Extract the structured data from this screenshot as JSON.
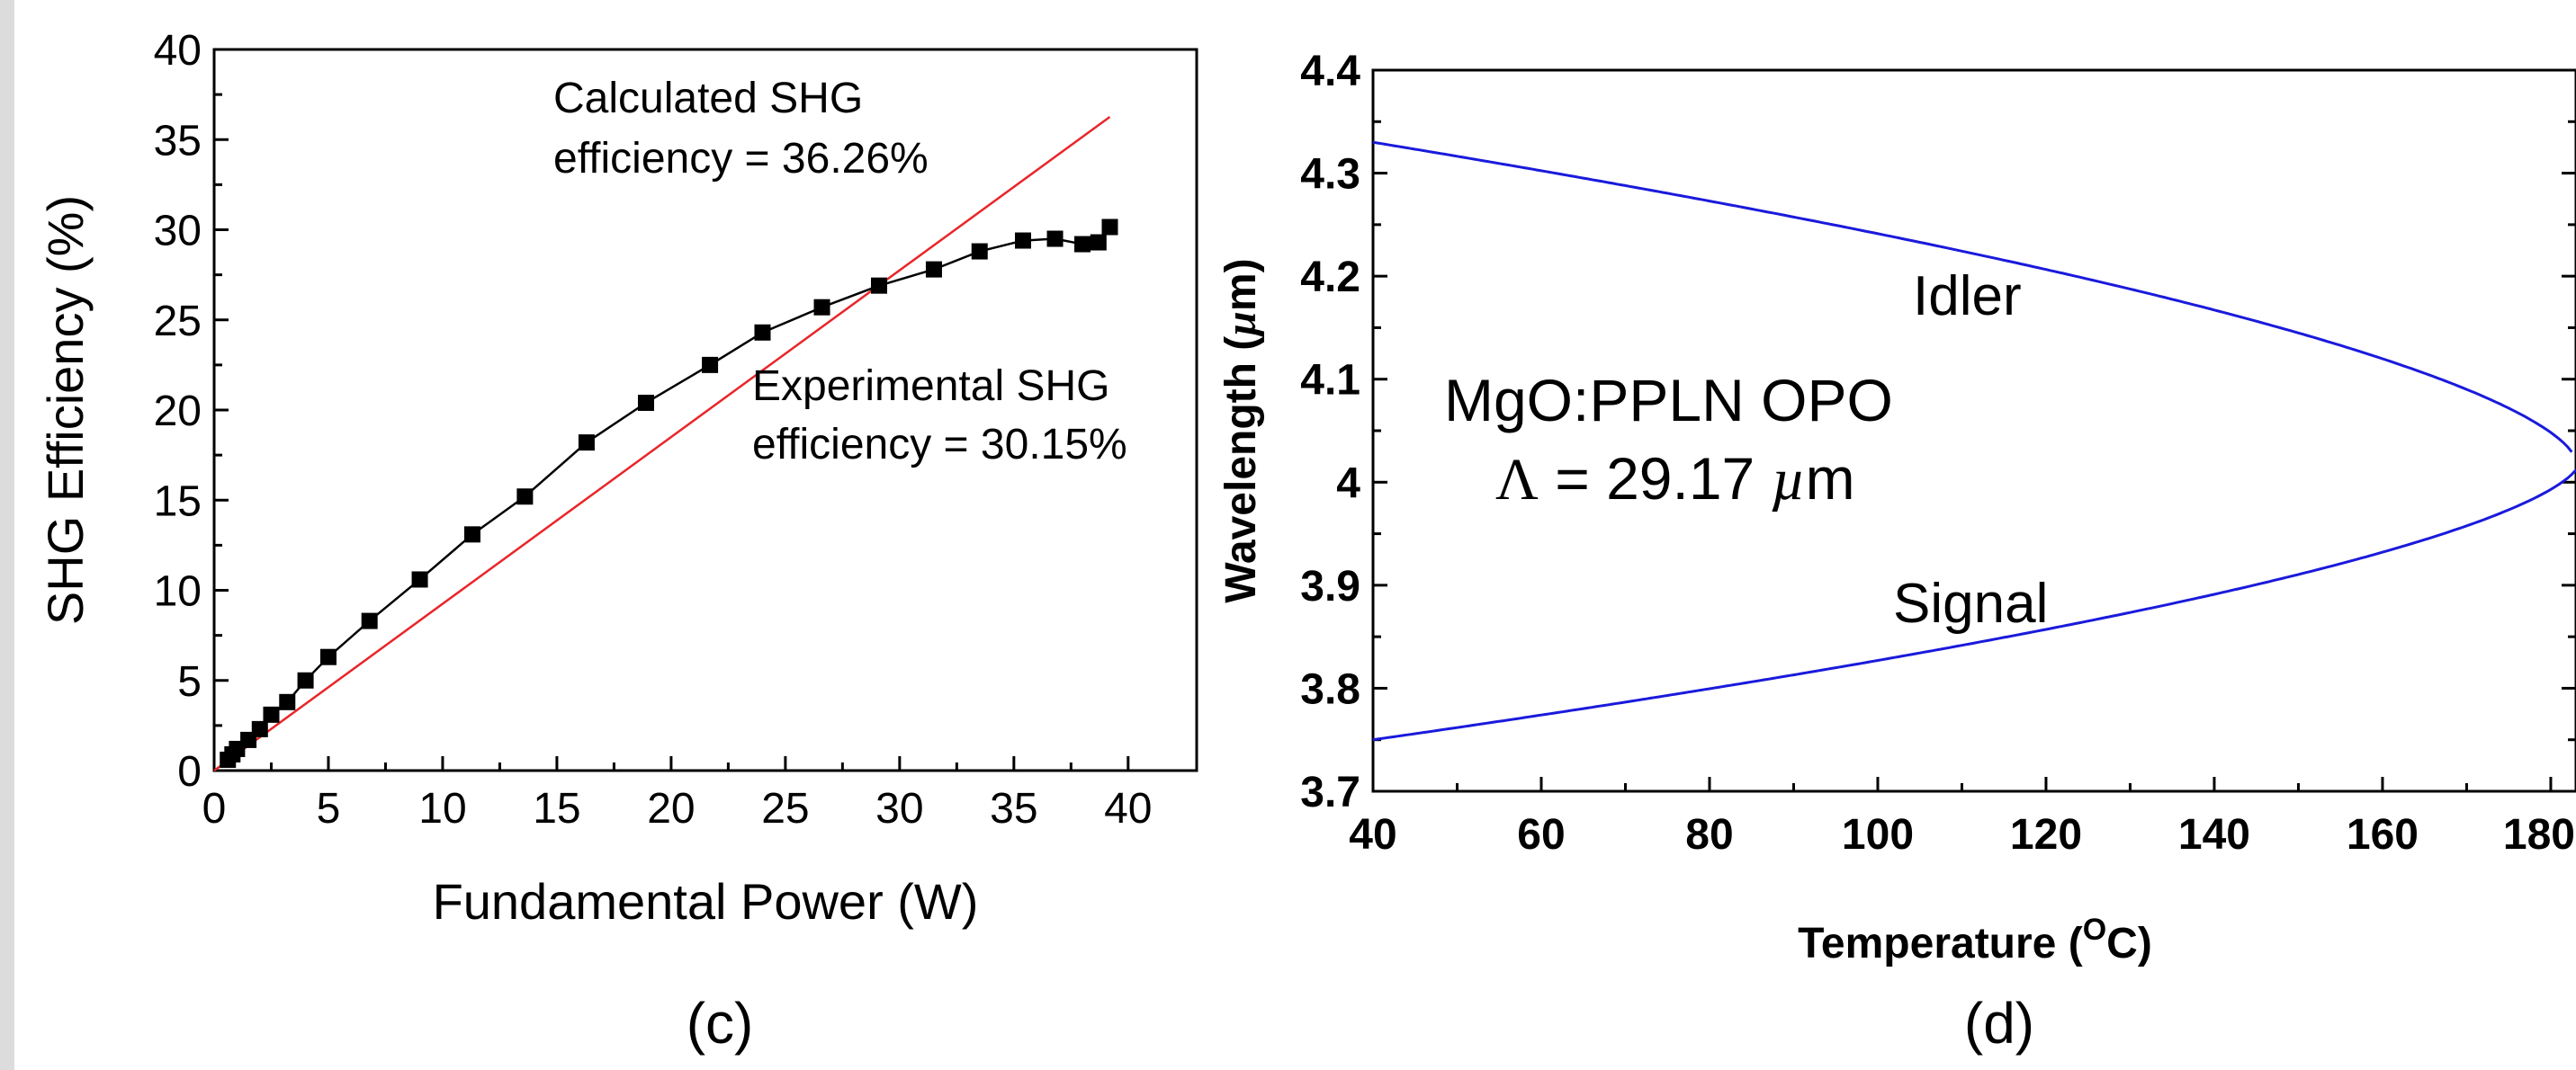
{
  "chart_data": [
    {
      "type": "line",
      "panel_label": "(c)",
      "xlabel": "Fundamental Power (W)",
      "ylabel": "SHG Efficiency (%)",
      "xlim": [
        0,
        43
      ],
      "ylim": [
        0,
        40
      ],
      "xticks": [
        0,
        5,
        10,
        15,
        20,
        25,
        30,
        35,
        40
      ],
      "yticks": [
        0,
        5,
        10,
        15,
        20,
        25,
        30,
        35,
        40
      ],
      "grid": false,
      "legend": "none",
      "series": [
        {
          "key": "experimental",
          "color": "#000000",
          "marker": "square",
          "x": [
            0.6,
            0.8,
            1.0,
            1.5,
            2.0,
            2.5,
            3.2,
            4.0,
            5.0,
            6.8,
            9.0,
            11.3,
            13.6,
            16.3,
            18.9,
            21.7,
            24.0,
            26.6,
            29.1,
            31.5,
            33.5,
            35.4,
            36.8,
            38.0,
            38.7,
            39.2
          ],
          "y": [
            0.6,
            0.9,
            1.2,
            1.7,
            2.3,
            3.1,
            3.8,
            5.0,
            6.3,
            8.3,
            10.6,
            13.1,
            15.2,
            18.2,
            20.4,
            22.5,
            24.3,
            25.7,
            26.9,
            27.8,
            28.8,
            29.4,
            29.5,
            29.2,
            29.3,
            30.15
          ]
        },
        {
          "key": "calculated",
          "color": "#e8262a",
          "marker": "none",
          "x": [
            0,
            39.2
          ],
          "y": [
            0,
            36.26
          ]
        }
      ],
      "annotations": [
        {
          "key": "calc",
          "lines": [
            "Calculated SHG",
            "efficiency = 36.26%"
          ]
        },
        {
          "key": "exp",
          "lines": [
            "Experimental SHG",
            "efficiency = 30.15%"
          ]
        }
      ]
    },
    {
      "type": "line",
      "panel_label": "(d)",
      "xlabel": "Temperature (",
      "xlabel_sup": "O",
      "xlabel_end": "C)",
      "ylabel": "Wavelength (",
      "ylabel_mu": "µ",
      "ylabel_end": "m)",
      "xlim": [
        40,
        183
      ],
      "ylim": [
        3.7,
        4.4
      ],
      "xticks": [
        40,
        60,
        80,
        100,
        120,
        140,
        160,
        180
      ],
      "yticks": [
        3.7,
        3.8,
        3.9,
        4,
        4.1,
        4.2,
        4.3,
        4.4
      ],
      "ytick_labels": [
        "3.7",
        "3.8",
        "3.9",
        "4",
        "4.1",
        "4.2",
        "4.3",
        "4.4"
      ],
      "grid": false,
      "legend": "none",
      "series": [
        {
          "key": "idler",
          "name": "Idler",
          "color": "#1a1adc",
          "function": "idler",
          "x_range": [
            40,
            182.5
          ]
        },
        {
          "key": "signal",
          "name": "Signal",
          "color": "#1a1adc",
          "function": "signal",
          "x_range": [
            40,
            183
          ]
        }
      ],
      "annotations": [
        {
          "key": "idler",
          "text": "Idler"
        },
        {
          "key": "signal",
          "text": "Signal"
        },
        {
          "key": "crystal",
          "text": "MgO:PPLN OPO"
        },
        {
          "key": "period",
          "symbol": "Λ",
          "text_a": " = 29.17 ",
          "mu": "µ",
          "text_b": "m"
        }
      ]
    }
  ]
}
